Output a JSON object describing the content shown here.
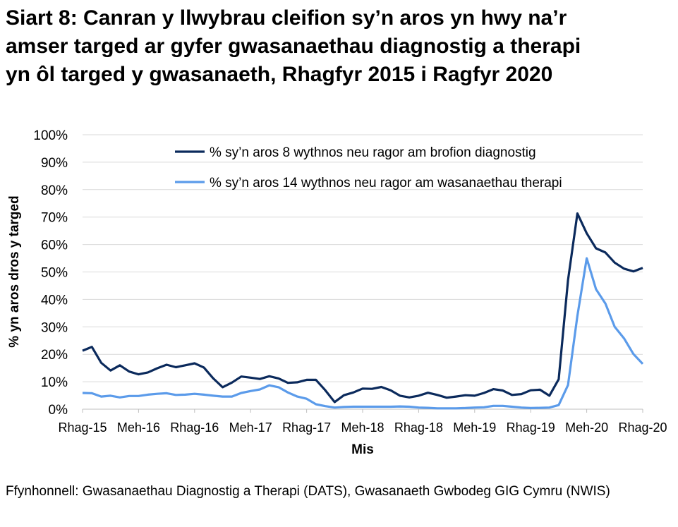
{
  "title_lines": [
    "Siart 8: Canran y llwybrau cleifion sy’n aros yn hwy na’r",
    "amser targed ar gyfer gwasanaethau diagnostig a therapi",
    "yn ôl targed y gwasanaeth, Rhagfyr 2015 i Ragfyr 2020"
  ],
  "source": "Ffynhonnell: Gwasanaethau Diagnostig a Therapi (DATS), Gwasanaeth Gwbodeg GIG Cymru (NWIS)",
  "chart_data": {
    "type": "line",
    "xlabel": "Mis",
    "ylabel": "% yn aros dros y targed",
    "ylim": [
      0,
      100
    ],
    "y_ticks": [
      "0%",
      "10%",
      "20%",
      "30%",
      "40%",
      "50%",
      "60%",
      "70%",
      "80%",
      "90%",
      "100%"
    ],
    "x_tick_labels": [
      {
        "index": 0,
        "label": "Rhag-15"
      },
      {
        "index": 6,
        "label": "Meh-16"
      },
      {
        "index": 12,
        "label": "Rhag-16"
      },
      {
        "index": 18,
        "label": "Meh-17"
      },
      {
        "index": 24,
        "label": "Rhag-17"
      },
      {
        "index": 30,
        "label": "Meh-18"
      },
      {
        "index": 36,
        "label": "Rhag-18"
      },
      {
        "index": 42,
        "label": "Meh-19"
      },
      {
        "index": 48,
        "label": "Rhag-19"
      },
      {
        "index": 54,
        "label": "Meh-20"
      },
      {
        "index": 60,
        "label": "Rhag-20"
      }
    ],
    "legend_position": "top-right",
    "series": [
      {
        "name": "% sy’n aros 8 wythnos neu ragor am brofion diagnostig",
        "color": "#0b2a5c",
        "values": [
          21.3,
          22.7,
          16.9,
          14.1,
          16.0,
          13.7,
          12.7,
          13.4,
          14.9,
          16.2,
          15.3,
          16.0,
          16.7,
          15.2,
          11.2,
          8.0,
          9.7,
          11.9,
          11.5,
          11.0,
          12.0,
          11.2,
          9.6,
          9.8,
          10.7,
          10.7,
          6.9,
          2.6,
          5.1,
          6.1,
          7.5,
          7.4,
          8.1,
          6.9,
          4.9,
          4.3,
          4.9,
          6.0,
          5.2,
          4.2,
          4.6,
          5.1,
          4.9,
          5.9,
          7.3,
          6.8,
          5.2,
          5.5,
          6.9,
          7.1,
          4.9,
          10.9,
          47.0,
          71.3,
          64.1,
          58.6,
          57.1,
          53.4,
          51.2,
          50.2,
          51.5
        ]
      },
      {
        "name": "% sy’n aros 14 wythnos neu ragor am wasanaethau therapi",
        "color": "#5b9bea",
        "values": [
          5.9,
          5.8,
          4.6,
          4.9,
          4.3,
          4.8,
          4.8,
          5.3,
          5.6,
          5.8,
          5.2,
          5.3,
          5.6,
          5.3,
          4.9,
          4.6,
          4.6,
          5.9,
          6.6,
          7.2,
          8.7,
          8.0,
          6.1,
          4.6,
          3.8,
          1.8,
          1.1,
          0.6,
          0.8,
          0.9,
          0.9,
          0.9,
          0.9,
          0.9,
          1.0,
          0.9,
          0.6,
          0.5,
          0.3,
          0.3,
          0.3,
          0.4,
          0.6,
          0.7,
          1.2,
          1.2,
          0.9,
          0.6,
          0.4,
          0.5,
          0.6,
          1.5,
          8.8,
          34.0,
          55.0,
          43.7,
          38.5,
          30.0,
          25.8,
          20.1,
          16.5
        ]
      }
    ]
  }
}
